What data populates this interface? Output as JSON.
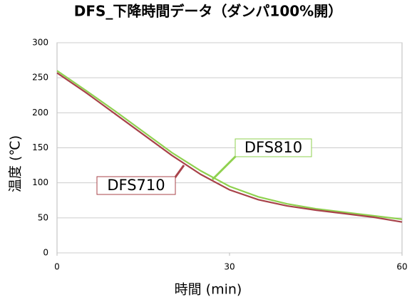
{
  "chart_data": {
    "type": "line",
    "title": "DFS_下降時間データ（ダンパ100%開）",
    "x_label": "時間 (min)",
    "y_label": "温度 (℃)",
    "x": [
      0,
      5,
      10,
      15,
      20,
      25,
      30,
      35,
      40,
      45,
      50,
      55,
      60
    ],
    "series": [
      {
        "name": "DFS810",
        "color": "#8fd14f",
        "values": [
          260,
          232,
          203,
          173,
          143,
          117,
          95,
          80,
          70,
          63,
          58,
          53,
          48
        ]
      },
      {
        "name": "DFS710",
        "color": "#a8434a",
        "values": [
          257,
          229,
          199,
          169,
          139,
          112,
          90,
          76,
          67,
          61,
          56,
          51,
          44
        ]
      }
    ],
    "xlim": [
      0,
      60
    ],
    "xticks": [
      0,
      30,
      60
    ],
    "ylim": [
      0,
      300
    ],
    "yticks": [
      0,
      50,
      100,
      150,
      200,
      250,
      300
    ],
    "grid": true
  }
}
